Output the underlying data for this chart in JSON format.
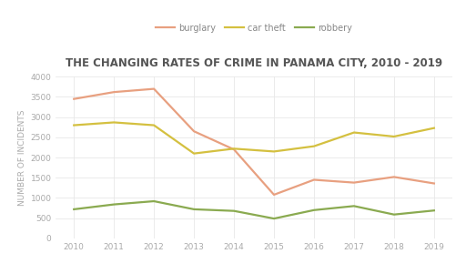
{
  "title": "THE CHANGING RATES OF CRIME IN PANAMA CITY, 2010 - 2019",
  "ylabel": "NUMBER OF INCIDENTS",
  "years": [
    2010,
    2011,
    2012,
    2013,
    2014,
    2015,
    2016,
    2017,
    2018,
    2019
  ],
  "burglary": [
    3450,
    3620,
    3700,
    2650,
    2200,
    1080,
    1450,
    1380,
    1520,
    1360
  ],
  "car_theft": [
    2800,
    2870,
    2800,
    2100,
    2220,
    2150,
    2280,
    2620,
    2520,
    2730
  ],
  "robbery": [
    720,
    840,
    920,
    720,
    680,
    490,
    700,
    800,
    590,
    690
  ],
  "burglary_color": "#e8a080",
  "car_theft_color": "#d4c040",
  "robbery_color": "#8aaa50",
  "background_color": "#ffffff",
  "ylim": [
    0,
    4000
  ],
  "yticks": [
    0,
    500,
    1000,
    1500,
    2000,
    2500,
    3000,
    3500,
    4000
  ],
  "legend_labels": [
    "burglary",
    "car theft",
    "robbery"
  ],
  "title_fontsize": 8.5,
  "axis_label_fontsize": 6.5,
  "tick_fontsize": 6.5,
  "legend_fontsize": 7,
  "line_width": 1.6,
  "title_color": "#555555",
  "tick_color": "#aaaaaa",
  "grid_color": "#e8e8e8",
  "ylabel_color": "#aaaaaa"
}
